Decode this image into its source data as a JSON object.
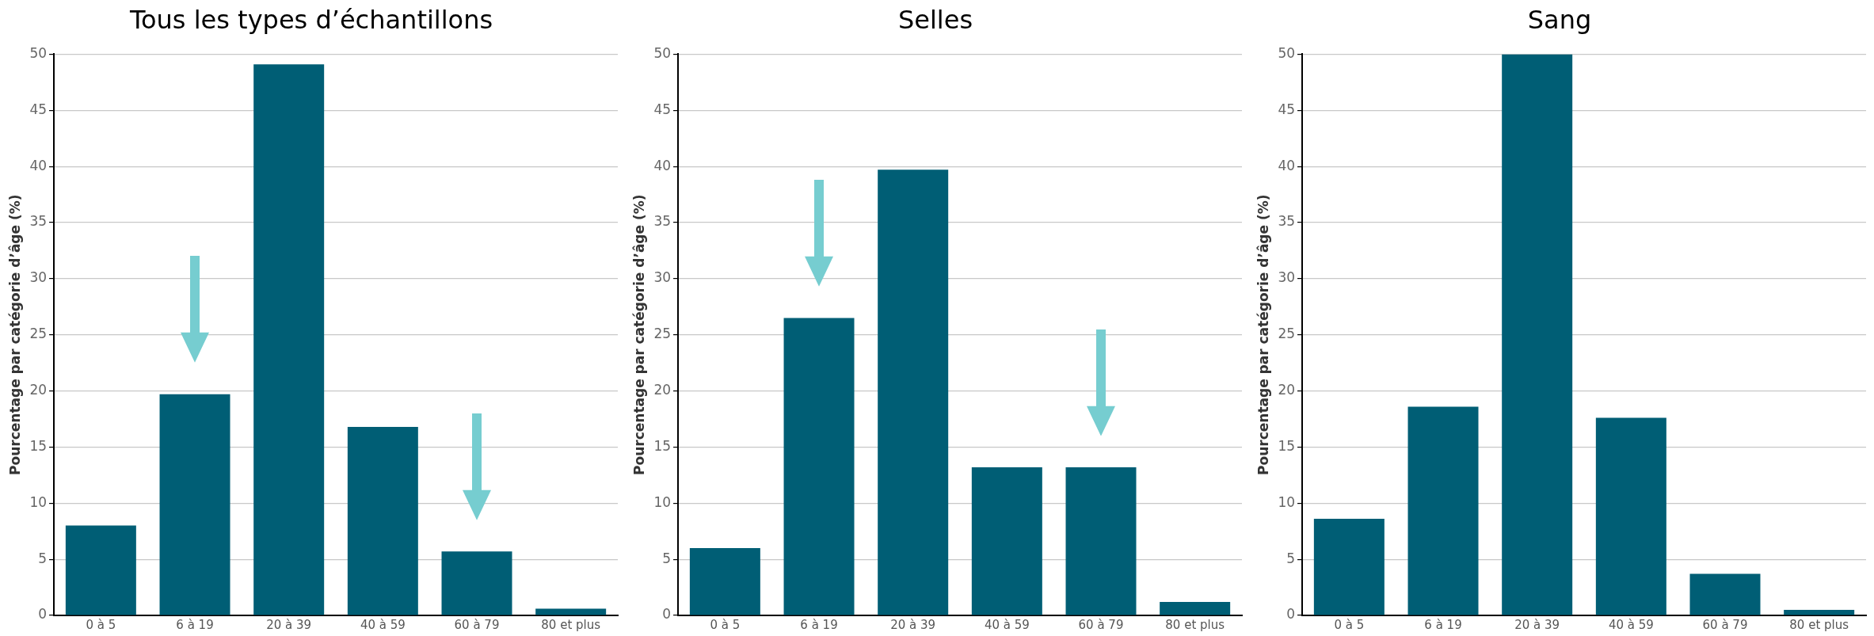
{
  "chart_data": [
    {
      "type": "bar",
      "title": "Tous les types d’échantillons",
      "ylabel": "Pourcentage par catégorie d’âge (%)",
      "categories": [
        "0 à 5",
        "6 à 19",
        "20 à 39",
        "40 à 59",
        "60 à 79",
        "80 et plus"
      ],
      "values": [
        8.0,
        19.7,
        49.1,
        16.8,
        5.7,
        0.6
      ],
      "color": "#005e75",
      "ylim": [
        0,
        50
      ],
      "yticks": [
        0,
        5,
        10,
        15,
        20,
        25,
        30,
        35,
        40,
        45,
        50
      ],
      "grid": "y"
    },
    {
      "type": "bar",
      "title": "Selles",
      "ylabel": "Pourcentage par catégorie d’âge (%)",
      "categories": [
        "0 à 5",
        "6 à 19",
        "20 à 39",
        "40 à 59",
        "60 à 79",
        "80 et plus"
      ],
      "values": [
        6.0,
        26.5,
        39.7,
        13.2,
        13.2,
        1.2
      ],
      "color": "#005e75",
      "ylim": [
        0,
        50
      ],
      "yticks": [
        0,
        5,
        10,
        15,
        20,
        25,
        30,
        35,
        40,
        45,
        50
      ],
      "grid": "y"
    },
    {
      "type": "bar",
      "title": "Sang",
      "ylabel": "Pourcentage par catégorie d’âge (%)",
      "categories": [
        "0 à 5",
        "6 à 19",
        "20 à 39",
        "40 à 59",
        "60 à 79",
        "80 et plus"
      ],
      "values": [
        8.6,
        18.6,
        50,
        17.6,
        3.7,
        0.5
      ],
      "color": "#005e75",
      "ylim": [
        0,
        50
      ],
      "yticks": [
        0,
        5,
        10,
        15,
        20,
        25,
        30,
        35,
        40,
        45,
        50
      ],
      "grid": "y"
    }
  ]
}
